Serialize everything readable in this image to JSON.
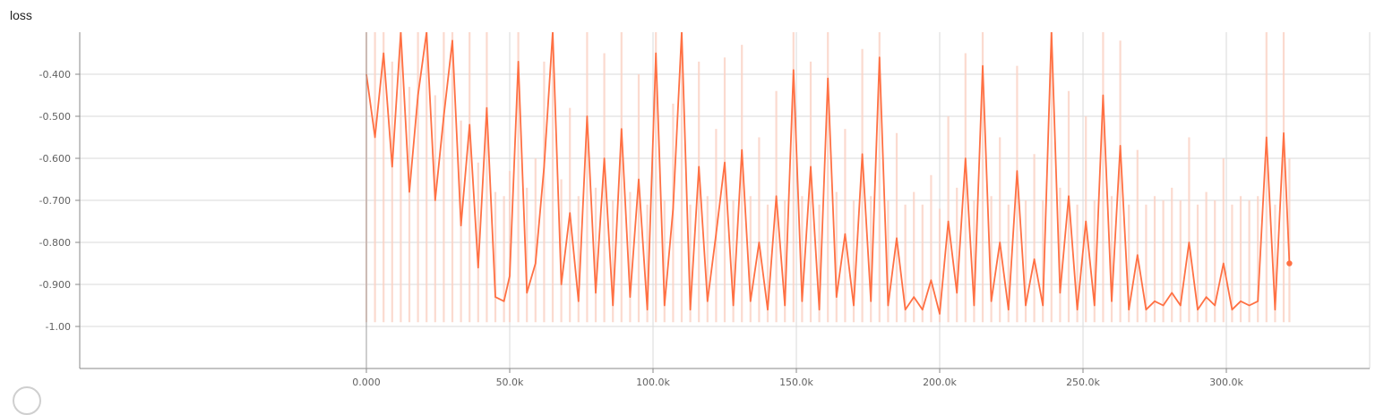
{
  "title": "loss",
  "colors": {
    "line": "#ff7043",
    "raw": "#fbd2c4",
    "grid": "#dadada"
  },
  "chart_data": {
    "type": "line",
    "title": "loss",
    "xlabel": "",
    "ylabel": "",
    "xlim": [
      -100000,
      350000
    ],
    "ylim": [
      -1.1,
      -0.3
    ],
    "x_ticks": [
      0,
      50000,
      100000,
      150000,
      200000,
      250000,
      300000
    ],
    "x_tick_labels": [
      "0.000",
      "50.0k",
      "100.0k",
      "150.0k",
      "200.0k",
      "250.0k",
      "300.0k"
    ],
    "y_ticks": [
      -0.4,
      -0.5,
      -0.6,
      -0.7,
      -0.8,
      -0.9,
      -1.0
    ],
    "y_tick_labels": [
      "-0.400",
      "-0.500",
      "-0.600",
      "-0.700",
      "-0.800",
      "-0.900",
      "-1.00"
    ],
    "grid": true,
    "legend": "none",
    "series": [
      {
        "style": "smoothed",
        "x": [
          0,
          3000,
          6000,
          9000,
          12000,
          15000,
          18000,
          21000,
          24000,
          27000,
          30000,
          33000,
          36000,
          39000,
          42000,
          45000,
          48000,
          50000,
          53000,
          56000,
          59000,
          62000,
          65000,
          68000,
          71000,
          74000,
          77000,
          80000,
          83000,
          86000,
          89000,
          92000,
          95000,
          98000,
          101000,
          104000,
          107000,
          110000,
          113000,
          116000,
          119000,
          122000,
          125000,
          128000,
          131000,
          134000,
          137000,
          140000,
          143000,
          146000,
          149000,
          152000,
          155000,
          158000,
          161000,
          164000,
          167000,
          170000,
          173000,
          176000,
          179000,
          182000,
          185000,
          188000,
          191000,
          194000,
          197000,
          200000,
          203000,
          206000,
          209000,
          212000,
          215000,
          218000,
          221000,
          224000,
          227000,
          230000,
          233000,
          236000,
          239000,
          242000,
          245000,
          248000,
          251000,
          254000,
          257000,
          260000,
          263000,
          266000,
          269000,
          272000,
          275000,
          278000,
          281000,
          284000,
          287000,
          290000,
          293000,
          296000,
          299000,
          302000,
          305000,
          308000,
          311000,
          314000,
          317000,
          320000,
          322000
        ],
        "y": [
          -0.4,
          -0.55,
          -0.35,
          -0.62,
          -0.3,
          -0.68,
          -0.45,
          -0.3,
          -0.7,
          -0.5,
          -0.32,
          -0.76,
          -0.52,
          -0.86,
          -0.48,
          -0.93,
          -0.94,
          -0.88,
          -0.37,
          -0.92,
          -0.85,
          -0.62,
          -0.3,
          -0.9,
          -0.73,
          -0.94,
          -0.5,
          -0.92,
          -0.6,
          -0.95,
          -0.53,
          -0.93,
          -0.65,
          -0.96,
          -0.35,
          -0.95,
          -0.72,
          -0.3,
          -0.96,
          -0.62,
          -0.94,
          -0.78,
          -0.61,
          -0.95,
          -0.58,
          -0.94,
          -0.8,
          -0.96,
          -0.69,
          -0.95,
          -0.39,
          -0.94,
          -0.62,
          -0.96,
          -0.41,
          -0.93,
          -0.78,
          -0.95,
          -0.59,
          -0.94,
          -0.36,
          -0.95,
          -0.79,
          -0.96,
          -0.93,
          -0.96,
          -0.89,
          -0.97,
          -0.75,
          -0.92,
          -0.6,
          -0.95,
          -0.38,
          -0.94,
          -0.8,
          -0.96,
          -0.63,
          -0.95,
          -0.84,
          -0.95,
          -0.3,
          -0.92,
          -0.69,
          -0.96,
          -0.75,
          -0.95,
          -0.45,
          -0.94,
          -0.57,
          -0.96,
          -0.83,
          -0.96,
          -0.94,
          -0.95,
          -0.92,
          -0.95,
          -0.8,
          -0.96,
          -0.93,
          -0.95,
          -0.85,
          -0.96,
          -0.94,
          -0.95,
          -0.94,
          -0.55,
          -0.96,
          -0.54,
          -0.85
        ]
      }
    ]
  }
}
